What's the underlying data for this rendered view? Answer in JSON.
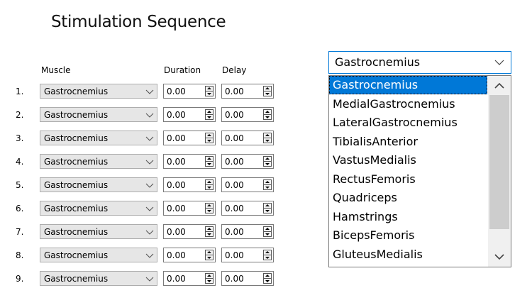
{
  "page": {
    "title": "Stimulation Sequence"
  },
  "table": {
    "headers": {
      "muscle": "Muscle",
      "duration": "Duration",
      "delay": "Delay"
    },
    "rows": [
      {
        "num": "1.",
        "muscle": "Gastrocnemius",
        "duration": "0.00",
        "delay": "0.00"
      },
      {
        "num": "2.",
        "muscle": "Gastrocnemius",
        "duration": "0.00",
        "delay": "0.00"
      },
      {
        "num": "3.",
        "muscle": "Gastrocnemius",
        "duration": "0.00",
        "delay": "0.00"
      },
      {
        "num": "4.",
        "muscle": "Gastrocnemius",
        "duration": "0.00",
        "delay": "0.00"
      },
      {
        "num": "5.",
        "muscle": "Gastrocnemius",
        "duration": "0.00",
        "delay": "0.00"
      },
      {
        "num": "6.",
        "muscle": "Gastrocnemius",
        "duration": "0.00",
        "delay": "0.00"
      },
      {
        "num": "7.",
        "muscle": "Gastrocnemius",
        "duration": "0.00",
        "delay": "0.00"
      },
      {
        "num": "8.",
        "muscle": "Gastrocnemius",
        "duration": "0.00",
        "delay": "0.00"
      },
      {
        "num": "9.",
        "muscle": "Gastrocnemius",
        "duration": "0.00",
        "delay": "0.00"
      }
    ]
  },
  "muscle_select": {
    "selected": "Gastrocnemius",
    "options": [
      "Gastrocnemius",
      "MedialGastrocnemius",
      "LateralGastrocnemius",
      "TibialisAnterior",
      "VastusMedialis",
      "RectusFemoris",
      "Quadriceps",
      "Hamstrings",
      "BicepsFemoris",
      "GluteusMedialis"
    ],
    "highlighted_index": 0,
    "scroll": {
      "thumb_start": 0.0,
      "thumb_end": 0.88
    }
  },
  "icons": {
    "combo_arrow": "chevron-down-icon",
    "spin_buttons": "spin-updown-icon",
    "scroll_up": "chevron-up-icon",
    "scroll_down": "chevron-down-icon"
  },
  "colors": {
    "selection": "#0078d7",
    "combo_bg": "#e6e6e6",
    "scroll_track": "#f0f0f0",
    "scroll_thumb": "#cdcdcd"
  }
}
